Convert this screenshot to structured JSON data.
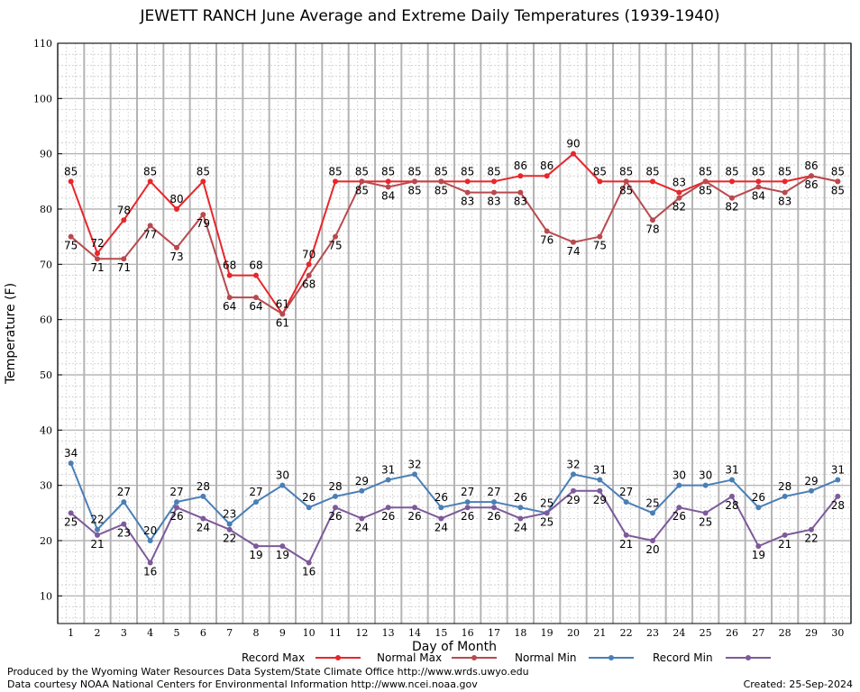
{
  "chart_data": {
    "type": "line",
    "title": "JEWETT RANCH June Average and Extreme Daily Temperatures (1939-1940)",
    "xlabel": "Day of Month",
    "ylabel": "Temperature (F)",
    "xlim": [
      1,
      30
    ],
    "ylim": [
      5,
      110
    ],
    "yticks": [
      10,
      20,
      30,
      40,
      50,
      60,
      70,
      80,
      90,
      100,
      110
    ],
    "x": [
      1,
      2,
      3,
      4,
      5,
      6,
      7,
      8,
      9,
      10,
      11,
      12,
      13,
      14,
      15,
      16,
      17,
      18,
      19,
      20,
      21,
      22,
      23,
      24,
      25,
      26,
      27,
      28,
      29,
      30
    ],
    "grid": true,
    "legend_position": "bottom",
    "series": [
      {
        "name": "Record Max",
        "color": "#e8262b",
        "values": [
          85,
          72,
          78,
          85,
          80,
          85,
          68,
          68,
          61,
          70,
          85,
          85,
          85,
          85,
          85,
          85,
          85,
          86,
          86,
          90,
          85,
          85,
          85,
          83,
          85,
          85,
          85,
          85,
          86,
          85
        ]
      },
      {
        "name": "Normal Max",
        "color": "#b84a4f",
        "values": [
          75,
          71,
          71,
          77,
          73,
          79,
          64,
          64,
          61,
          68,
          75,
          85,
          84,
          85,
          85,
          83,
          83,
          83,
          76,
          74,
          75,
          85,
          78,
          82,
          85,
          82,
          84,
          83,
          86,
          85
        ]
      },
      {
        "name": "Normal Min",
        "color": "#4a7fb5",
        "values": [
          34,
          22,
          27,
          20,
          27,
          28,
          23,
          27,
          30,
          26,
          28,
          29,
          31,
          32,
          26,
          27,
          27,
          26,
          25,
          32,
          31,
          27,
          25,
          30,
          30,
          31,
          26,
          28,
          29,
          31
        ]
      },
      {
        "name": "Record Min",
        "color": "#7d5a9a",
        "values": [
          25,
          21,
          23,
          16,
          26,
          24,
          22,
          19,
          19,
          16,
          26,
          24,
          26,
          26,
          24,
          26,
          26,
          24,
          25,
          29,
          29,
          21,
          20,
          26,
          25,
          28,
          19,
          21,
          22,
          28
        ]
      }
    ]
  },
  "footer": {
    "line1": "Produced by the Wyoming Water Resources Data System/State Climate Office http://www.wrds.uwyo.edu",
    "line2": "Data courtesy NOAA National Centers for Environmental Information http://www.ncei.noaa.gov",
    "created": "Created:  25-Sep-2024"
  }
}
